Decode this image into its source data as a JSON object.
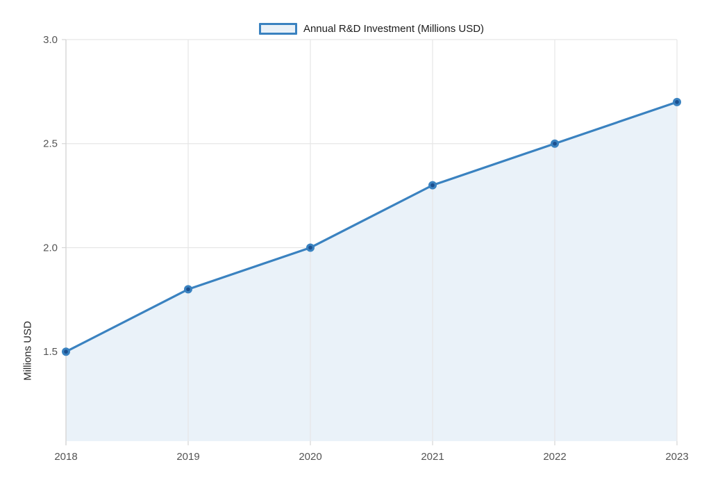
{
  "legend": {
    "label": "Annual R&D Investment (Millions USD)"
  },
  "y_axis": {
    "title": "Millions USD"
  },
  "colors": {
    "line": "#3a82c0",
    "marker_core": "#1c4f8e",
    "area_fill": "#eaf2f9",
    "gridline": "#e6e6e6",
    "axis_line": "#d6d6d6",
    "tick_label": "#545454",
    "legend_text": "#1c1c1c",
    "legend_swatch_fill": "#e9f1f8",
    "background": "#ffffff"
  },
  "chart_data": {
    "type": "area",
    "categories": [
      "2018",
      "2019",
      "2020",
      "2021",
      "2022",
      "2023"
    ],
    "series": [
      {
        "name": "Annual R&D Investment (Millions USD)",
        "values": [
          1.5,
          1.8,
          2.0,
          2.3,
          2.5,
          2.7
        ]
      }
    ],
    "title": "",
    "xlabel": "",
    "ylabel": "Millions USD",
    "ylim": [
      1.07,
      3.0
    ],
    "yticks": [
      1.5,
      2.0,
      2.5,
      3.0
    ],
    "grid": true,
    "legend_position": "top-center",
    "markers": true
  }
}
